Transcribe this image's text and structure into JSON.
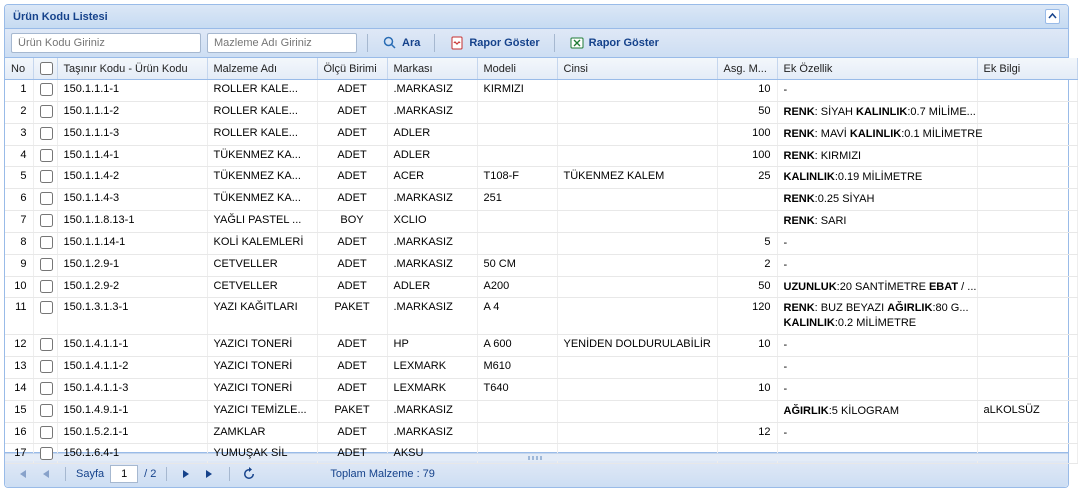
{
  "panel": {
    "title": "Ürün Kodu Listesi"
  },
  "toolbar": {
    "kodu_placeholder": "Ürün Kodu Giriniz",
    "ad_placeholder": "Mazleme Adı Giriniz",
    "search_label": "Ara",
    "report_pdf_label": "Rapor Göster",
    "report_xls_label": "Rapor Göster"
  },
  "columns": {
    "no": "No",
    "kodu": "Taşınır Kodu - Ürün Kodu",
    "ad": "Malzeme Adı",
    "olcu": "Ölçü Birimi",
    "marka": "Markası",
    "model": "Modeli",
    "cins": "Cinsi",
    "asg": "Asg. M...",
    "ek": "Ek Özellik",
    "bilgi": "Ek Bilgi"
  },
  "rows": [
    {
      "no": "1",
      "kodu": "150.1.1.1-1",
      "ad": "ROLLER KALE...",
      "olcu": "ADET",
      "marka": ".MARKASIZ",
      "model": "KIRMIZI",
      "cins": "",
      "asg": "10",
      "ek": [
        {
          "t": "-"
        }
      ],
      "bilgi": ""
    },
    {
      "no": "2",
      "kodu": "150.1.1.1-2",
      "ad": "ROLLER KALE...",
      "olcu": "ADET",
      "marka": ".MARKASIZ",
      "model": "",
      "cins": "",
      "asg": "50",
      "ek": [
        {
          "k": "RENK",
          "v": ": SİYAH  "
        },
        {
          "k": "KALINLIK",
          "v": ":0.7 MİLİME..."
        }
      ],
      "bilgi": ""
    },
    {
      "no": "3",
      "kodu": "150.1.1.1-3",
      "ad": "ROLLER KALE...",
      "olcu": "ADET",
      "marka": "ADLER",
      "model": "",
      "cins": "",
      "asg": "100",
      "ek": [
        {
          "k": "RENK",
          "v": ": MAVİ  "
        },
        {
          "k": "KALINLIK",
          "v": ":0.1 MİLİMETRE"
        }
      ],
      "bilgi": ""
    },
    {
      "no": "4",
      "kodu": "150.1.1.4-1",
      "ad": "TÜKENMEZ KA...",
      "olcu": "ADET",
      "marka": "ADLER",
      "model": "",
      "cins": "",
      "asg": "100",
      "ek": [
        {
          "k": "RENK",
          "v": ": KIRMIZI"
        }
      ],
      "bilgi": ""
    },
    {
      "no": "5",
      "kodu": "150.1.1.4-2",
      "ad": "TÜKENMEZ KA...",
      "olcu": "ADET",
      "marka": "ACER",
      "model": "T108-F",
      "cins": "TÜKENMEZ KALEM",
      "asg": "25",
      "ek": [
        {
          "k": "KALINLIK",
          "v": ":0.19 MİLİMETRE"
        }
      ],
      "bilgi": ""
    },
    {
      "no": "6",
      "kodu": "150.1.1.4-3",
      "ad": "TÜKENMEZ KA...",
      "olcu": "ADET",
      "marka": ".MARKASIZ",
      "model": "251",
      "cins": "",
      "asg": "",
      "ek": [
        {
          "k": "RENK",
          "v": ":0.25 SİYAH"
        }
      ],
      "bilgi": ""
    },
    {
      "no": "7",
      "kodu": "150.1.1.8.13-1",
      "ad": "YAĞLI PASTEL ...",
      "olcu": "BOY",
      "marka": "XCLIO",
      "model": "",
      "cins": "",
      "asg": "",
      "ek": [
        {
          "k": "RENK",
          "v": ": SARI"
        }
      ],
      "bilgi": ""
    },
    {
      "no": "8",
      "kodu": "150.1.1.14-1",
      "ad": "KOLİ KALEMLERİ",
      "olcu": "ADET",
      "marka": ".MARKASIZ",
      "model": "",
      "cins": "",
      "asg": "5",
      "ek": [
        {
          "t": "-"
        }
      ],
      "bilgi": ""
    },
    {
      "no": "9",
      "kodu": "150.1.2.9-1",
      "ad": "CETVELLER",
      "olcu": "ADET",
      "marka": ".MARKASIZ",
      "model": "50 CM",
      "cins": "",
      "asg": "2",
      "ek": [
        {
          "t": "-"
        }
      ],
      "bilgi": ""
    },
    {
      "no": "10",
      "kodu": "150.1.2.9-2",
      "ad": "CETVELLER",
      "olcu": "ADET",
      "marka": "ADLER",
      "model": "A200",
      "cins": "",
      "asg": "50",
      "ek": [
        {
          "k": "UZUNLUK",
          "v": ":20 SANTİMETRE  "
        },
        {
          "k": "EBAT",
          "v": " / ..."
        }
      ],
      "bilgi": ""
    },
    {
      "no": "11",
      "kodu": "150.1.3.1.3-1",
      "ad": "YAZI KAĞITLARI",
      "olcu": "PAKET",
      "marka": ".MARKASIZ",
      "model": "A 4",
      "cins": "",
      "asg": "120",
      "ek": [
        {
          "k": "RENK",
          "v": ": BUZ BEYAZI  "
        },
        {
          "k": "AĞIRLIK",
          "v": ":80 G..."
        },
        {
          "br": true
        },
        {
          "k": "KALINLIK",
          "v": ":0.2 MİLİMETRE"
        }
      ],
      "bilgi": ""
    },
    {
      "no": "12",
      "kodu": "150.1.4.1.1-1",
      "ad": "YAZICI TONERİ",
      "olcu": "ADET",
      "marka": "HP",
      "model": "A 600",
      "cins": "YENİDEN DOLDURULABİLİR",
      "asg": "10",
      "ek": [
        {
          "t": "-"
        }
      ],
      "bilgi": ""
    },
    {
      "no": "13",
      "kodu": "150.1.4.1.1-2",
      "ad": "YAZICI TONERİ",
      "olcu": "ADET",
      "marka": "LEXMARK",
      "model": "M610",
      "cins": "",
      "asg": "",
      "ek": [
        {
          "t": "-"
        }
      ],
      "bilgi": ""
    },
    {
      "no": "14",
      "kodu": "150.1.4.1.1-3",
      "ad": "YAZICI TONERİ",
      "olcu": "ADET",
      "marka": "LEXMARK",
      "model": "T640",
      "cins": "",
      "asg": "10",
      "ek": [
        {
          "t": "-"
        }
      ],
      "bilgi": ""
    },
    {
      "no": "15",
      "kodu": "150.1.4.9.1-1",
      "ad": "YAZICI TEMİZLE...",
      "olcu": "PAKET",
      "marka": ".MARKASIZ",
      "model": "",
      "cins": "",
      "asg": "",
      "ek": [
        {
          "k": "AĞIRLIK",
          "v": ":5 KİLOGRAM"
        }
      ],
      "bilgi": "aLKOLSÜZ"
    },
    {
      "no": "16",
      "kodu": "150.1.5.2.1-1",
      "ad": "ZAMKLAR",
      "olcu": "ADET",
      "marka": ".MARKASIZ",
      "model": "",
      "cins": "",
      "asg": "12",
      "ek": [
        {
          "t": "-"
        }
      ],
      "bilgi": ""
    },
    {
      "no": "17",
      "kodu": "150.1.6.4-1",
      "ad": "YUMUŞAK SİL",
      "olcu": "ADET",
      "marka": "AKSU",
      "model": "",
      "cins": "",
      "asg": "",
      "ek": [],
      "bilgi": ""
    }
  ],
  "paging": {
    "page_label": "Sayfa",
    "page_current": "1",
    "page_total": "/ 2",
    "summary": "Toplam Malzeme : 79"
  },
  "colors": {
    "header_text": "#15428b",
    "border": "#99bbe8"
  }
}
